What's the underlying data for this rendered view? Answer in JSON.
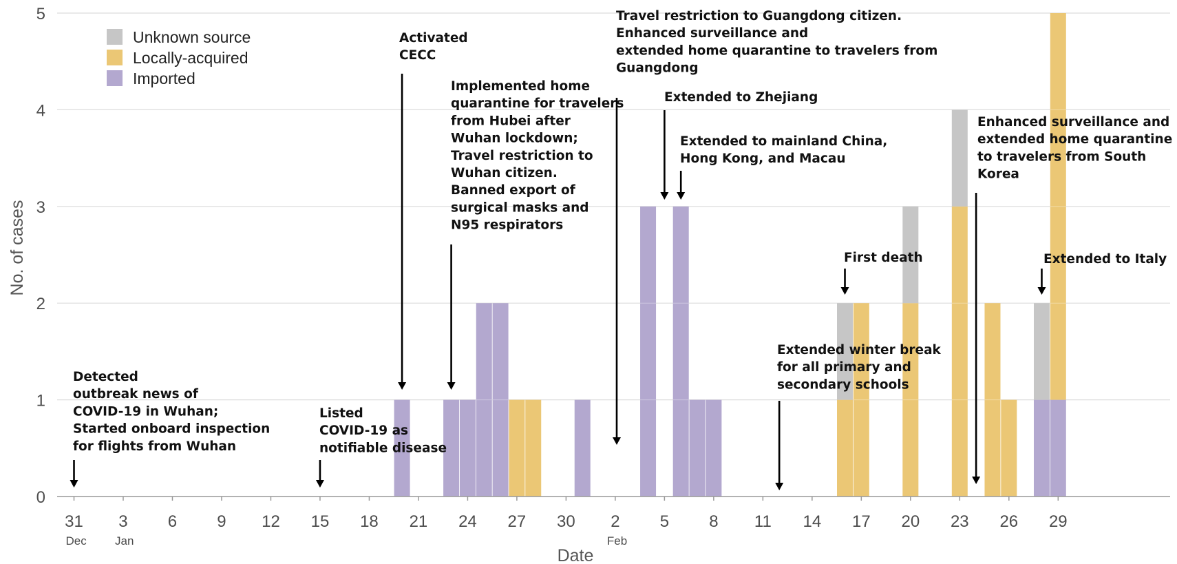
{
  "chart_data": {
    "type": "bar",
    "stacked": true,
    "xlabel": "Date",
    "ylabel": "No. of cases",
    "ylim": [
      0,
      5
    ],
    "yticks": [
      "0",
      "1",
      "2",
      "3",
      "4",
      "5"
    ],
    "grid": true,
    "legend_position": "top-left",
    "xticks": [
      {
        "day": 0,
        "label": "31",
        "sub": "Dec"
      },
      {
        "day": 3,
        "label": "3",
        "sub": "Jan"
      },
      {
        "day": 6,
        "label": "6"
      },
      {
        "day": 9,
        "label": "9"
      },
      {
        "day": 12,
        "label": "12"
      },
      {
        "day": 15,
        "label": "15"
      },
      {
        "day": 18,
        "label": "18"
      },
      {
        "day": 21,
        "label": "21"
      },
      {
        "day": 24,
        "label": "24"
      },
      {
        "day": 27,
        "label": "27"
      },
      {
        "day": 30,
        "label": "30"
      },
      {
        "day": 33,
        "label": "2",
        "sub": "Feb"
      },
      {
        "day": 36,
        "label": "5"
      },
      {
        "day": 39,
        "label": "8"
      },
      {
        "day": 42,
        "label": "11"
      },
      {
        "day": 45,
        "label": "14"
      },
      {
        "day": 48,
        "label": "17"
      },
      {
        "day": 51,
        "label": "20"
      },
      {
        "day": 54,
        "label": "23"
      },
      {
        "day": 57,
        "label": "26"
      },
      {
        "day": 60,
        "label": "29"
      }
    ],
    "series": [
      {
        "name": "Imported",
        "color": "#b3a8cf",
        "points": [
          {
            "date": "Jan 20",
            "day": 20,
            "value": 1
          },
          {
            "date": "Jan 23",
            "day": 23,
            "value": 1
          },
          {
            "date": "Jan 24",
            "day": 24,
            "value": 1
          },
          {
            "date": "Jan 25",
            "day": 25,
            "value": 2
          },
          {
            "date": "Jan 26",
            "day": 26,
            "value": 2
          },
          {
            "date": "Jan 31",
            "day": 31,
            "value": 1
          },
          {
            "date": "Feb 4",
            "day": 35,
            "value": 3
          },
          {
            "date": "Feb 6",
            "day": 37,
            "value": 3
          },
          {
            "date": "Feb 7",
            "day": 38,
            "value": 1
          },
          {
            "date": "Feb 8",
            "day": 39,
            "value": 1
          },
          {
            "date": "Feb 28",
            "day": 59,
            "value": 1
          },
          {
            "date": "Feb 29",
            "day": 60,
            "value": 1
          }
        ]
      },
      {
        "name": "Locally-acquired",
        "color": "#ebc775",
        "points": [
          {
            "date": "Jan 27",
            "day": 27,
            "value": 1
          },
          {
            "date": "Jan 28",
            "day": 28,
            "value": 1
          },
          {
            "date": "Feb 16",
            "day": 47,
            "value": 1
          },
          {
            "date": "Feb 17",
            "day": 48,
            "value": 2
          },
          {
            "date": "Feb 20",
            "day": 51,
            "value": 2
          },
          {
            "date": "Feb 23",
            "day": 54,
            "value": 3
          },
          {
            "date": "Feb 25",
            "day": 56,
            "value": 2
          },
          {
            "date": "Feb 26",
            "day": 57,
            "value": 1
          },
          {
            "date": "Feb 29",
            "day": 60,
            "value": 4
          }
        ]
      },
      {
        "name": "Unknown source",
        "color": "#c6c6c6",
        "points": [
          {
            "date": "Feb 16",
            "day": 47,
            "value": 1
          },
          {
            "date": "Feb 20",
            "day": 51,
            "value": 1
          },
          {
            "date": "Feb 23",
            "day": 54,
            "value": 1
          },
          {
            "date": "Feb 28",
            "day": 59,
            "value": 1
          }
        ]
      }
    ],
    "legend": [
      "Unknown source",
      "Locally-acquired",
      "Imported"
    ],
    "annotations": [
      {
        "date": "Dec 31",
        "lines": [
          "Detected",
          "outbreak news of",
          "COVID-19 in Wuhan;",
          "Started onboard inspection",
          "for flights from Wuhan"
        ]
      },
      {
        "date": "Jan 15",
        "lines": [
          "Listed",
          "COVID-19 as",
          "notifiable disease"
        ]
      },
      {
        "date": "Jan 20",
        "lines": [
          "Activated",
          "CECC"
        ]
      },
      {
        "date": "Jan 23",
        "lines": [
          "Implemented home",
          "quarantine for travelers",
          "from Hubei after",
          "Wuhan lockdown;",
          "Travel restriction to",
          "Wuhan citizen.",
          "Banned export of",
          "surgical masks and",
          "N95 respirators"
        ]
      },
      {
        "date": "Feb 2",
        "lines": [
          "Travel restriction to Guangdong citizen.",
          "Enhanced surveillance and",
          "extended home quarantine to travelers from",
          "Guangdong"
        ]
      },
      {
        "date": "Feb 5",
        "lines": [
          "Extended to Zhejiang"
        ]
      },
      {
        "date": "Feb 6",
        "lines": [
          "Extended to mainland China,",
          "Hong Kong, and Macau"
        ]
      },
      {
        "date": "Feb 12",
        "lines": [
          "Extended winter break",
          "for all primary and",
          "secondary schools"
        ]
      },
      {
        "date": "Feb 16",
        "lines": [
          "First death"
        ]
      },
      {
        "date": "Feb 24",
        "lines": [
          "Enhanced surveillance and",
          "extended home quarantine",
          "to travelers from South",
          "Korea"
        ]
      },
      {
        "date": "Feb 28",
        "lines": [
          "Extended to Italy"
        ]
      }
    ]
  }
}
